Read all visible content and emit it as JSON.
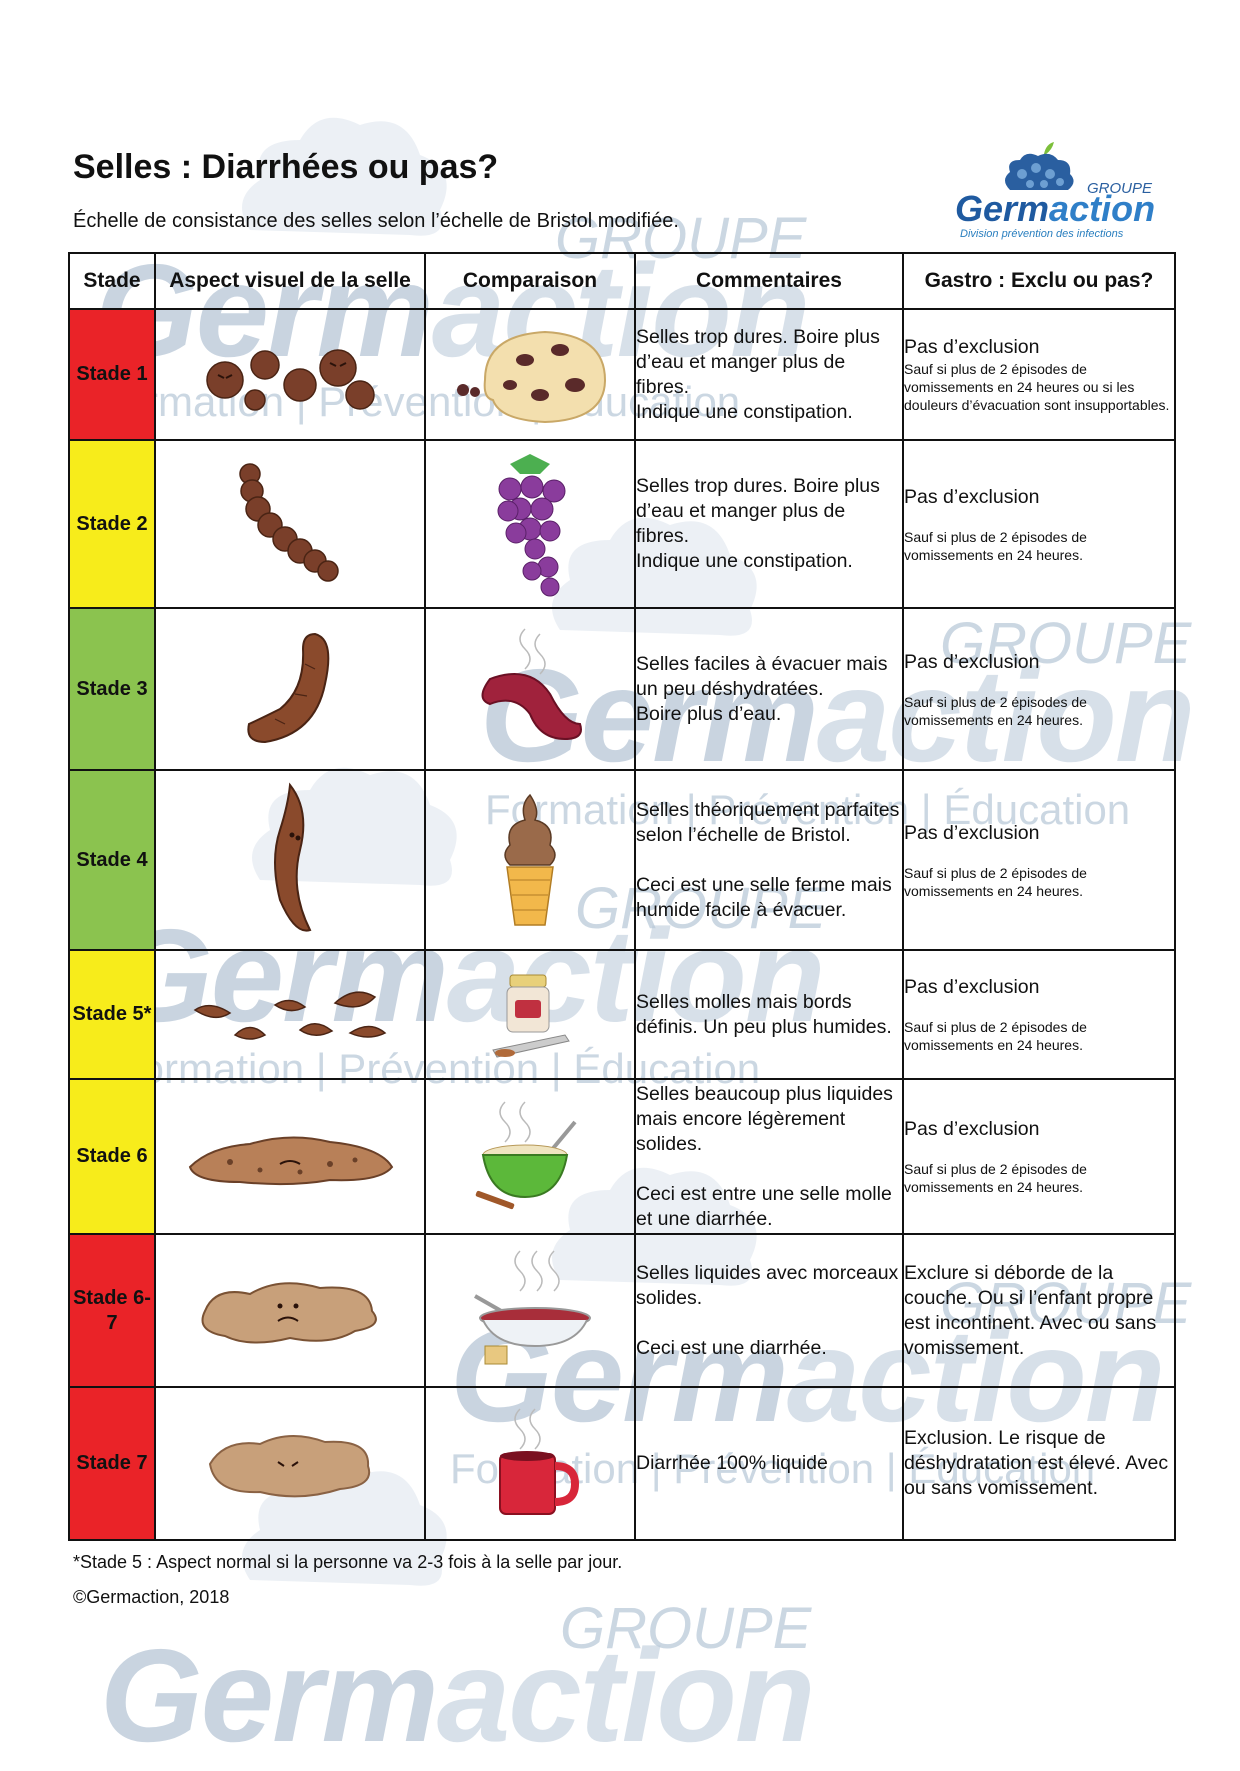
{
  "header": {
    "title": "Selles : Diarrhées ou pas?",
    "subtitle": "Échelle de consistance des selles selon l’échelle de Bristol modifiée."
  },
  "logo": {
    "groupe": "GROUPE",
    "name_part1": "Germ",
    "name_part2": "action",
    "division": "Division prévention des infections"
  },
  "watermark": {
    "groupe": "GROUPE",
    "name_part1": "Germ",
    "name_part2": "action",
    "tagline": "Formation | Prévention | Éducation"
  },
  "table": {
    "headers": [
      "Stade",
      "Aspect visuel de la selle",
      "Comparaison",
      "Commentaires",
      "Gastro : Exclu ou pas?"
    ],
    "rows": [
      {
        "stade": "Stade 1",
        "color": "#ea2328",
        "stool_icon": "hard-lumps-icon",
        "comparison_icon": "cookie-icon",
        "comment": [
          "Selles trop dures. Boire plus d’eau et manger plus de fibres.",
          "Indique une constipation."
        ],
        "gastro_main": "Pas d’exclusion",
        "gastro_note": "Sauf si plus de 2 épisodes de vomissements en 24 heures ou si les douleurs d’évacuation sont insupportables."
      },
      {
        "stade": "Stade 2",
        "color": "#f7ec1b",
        "stool_icon": "lumpy-sausage-icon",
        "comparison_icon": "grapes-icon",
        "comment": [
          "Selles trop dures. Boire plus d’eau et manger plus de fibres.",
          "Indique une constipation."
        ],
        "gastro_main": "Pas d’exclusion",
        "gastro_note": "Sauf si plus de 2 épisodes de vomissements en 24 heures."
      },
      {
        "stade": "Stade 3",
        "color": "#8bc34f",
        "stool_icon": "cracked-sausage-icon",
        "comparison_icon": "hot-sausage-icon",
        "comment": [
          "Selles faciles à évacuer mais un peu déshydratées.",
          "Boire plus d’eau."
        ],
        "gastro_main": "Pas d’exclusion",
        "gastro_note": "Sauf si plus de 2 épisodes de vomissements en 24 heures."
      },
      {
        "stade": "Stade 4",
        "color": "#8bc34f",
        "stool_icon": "smooth-snake-icon",
        "comparison_icon": "ice-cream-cone-icon",
        "comment": [
          "Selles théoriquement parfaites selon l’échelle de Bristol.",
          "Ceci est une selle ferme mais humide facile à évacuer."
        ],
        "gastro_main": "Pas d’exclusion",
        "gastro_note": "Sauf si plus de 2 épisodes de vomissements en 24 heures."
      },
      {
        "stade": "Stade 5*",
        "color": "#f7ec1b",
        "stool_icon": "soft-blobs-icon",
        "comparison_icon": "jam-jar-icon",
        "comment": [
          "Selles molles mais bords définis. Un peu plus humides."
        ],
        "gastro_main": "Pas d’exclusion",
        "gastro_note": "Sauf si plus de 2 épisodes de vomissements en 24 heures."
      },
      {
        "stade": "Stade 6",
        "color": "#f7ec1b",
        "stool_icon": "mushy-puddle-icon",
        "comparison_icon": "porridge-bowl-icon",
        "comment": [
          "Selles beaucoup plus liquides mais encore légèrement solides.",
          "Ceci est entre une selle molle et une diarrhée."
        ],
        "gastro_main": "Pas d’exclusion",
        "gastro_note": "Sauf si plus de 2 épisodes de vomissements en 24 heures."
      },
      {
        "stade": "Stade 6-7",
        "color": "#ea2328",
        "stool_icon": "watery-puddle-icon",
        "comparison_icon": "soup-bowl-icon",
        "comment": [
          "Selles liquides avec morceaux solides.",
          "Ceci est une diarrhée."
        ],
        "gastro_main": "Exclure si déborde de la couche. Ou si l’enfant propre est incontinent. Avec ou sans vomissement.",
        "gastro_note": ""
      },
      {
        "stade": "Stade 7",
        "color": "#ea2328",
        "stool_icon": "liquid-puddle-icon",
        "comparison_icon": "hot-mug-icon",
        "comment": [
          "Diarrhée 100% liquide"
        ],
        "gastro_main": "Exclusion. Le risque de déshydratation est élevé. Avec ou sans vomissement.",
        "gastro_note": ""
      }
    ]
  },
  "footer": {
    "note": "*Stade 5 : Aspect normal si la personne va 2-3 fois à la selle par jour.",
    "copyright": "©Germaction, 2018"
  }
}
